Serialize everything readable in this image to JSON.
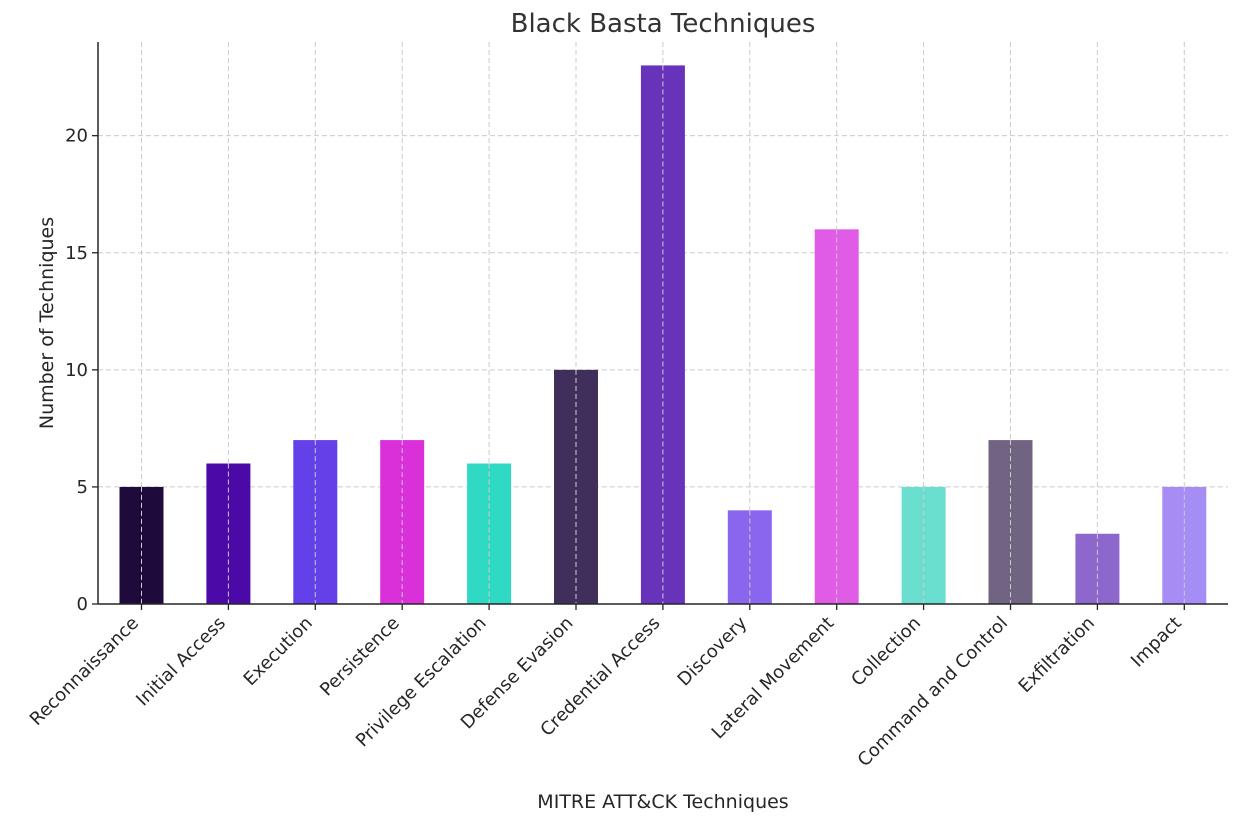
{
  "chart_data": {
    "type": "bar",
    "title": "Black Basta Techniques",
    "xlabel": "MITRE ATT&CK Techniques",
    "ylabel": "Number of Techniques",
    "categories": [
      "Reconnaissance",
      "Initial Access",
      "Execution",
      "Persistence",
      "Privilege Escalation",
      "Defense Evasion",
      "Credential Access",
      "Discovery",
      "Lateral Movement",
      "Collection",
      "Command and Control",
      "Exfiltration",
      "Impact"
    ],
    "values": [
      5,
      6,
      7,
      7,
      6,
      10,
      23,
      4,
      16,
      5,
      7,
      3,
      5
    ],
    "colors": [
      "#1f0a3c",
      "#4b0aa8",
      "#6340e8",
      "#d930d9",
      "#30d9c4",
      "#402f5a",
      "#6833bb",
      "#8a66ee",
      "#e05ce6",
      "#6adfd0",
      "#706482",
      "#8e67cc",
      "#a68cf5"
    ],
    "ylim": [
      0,
      24
    ],
    "yticks": [
      0,
      5,
      10,
      15,
      20
    ],
    "grid": true
  }
}
